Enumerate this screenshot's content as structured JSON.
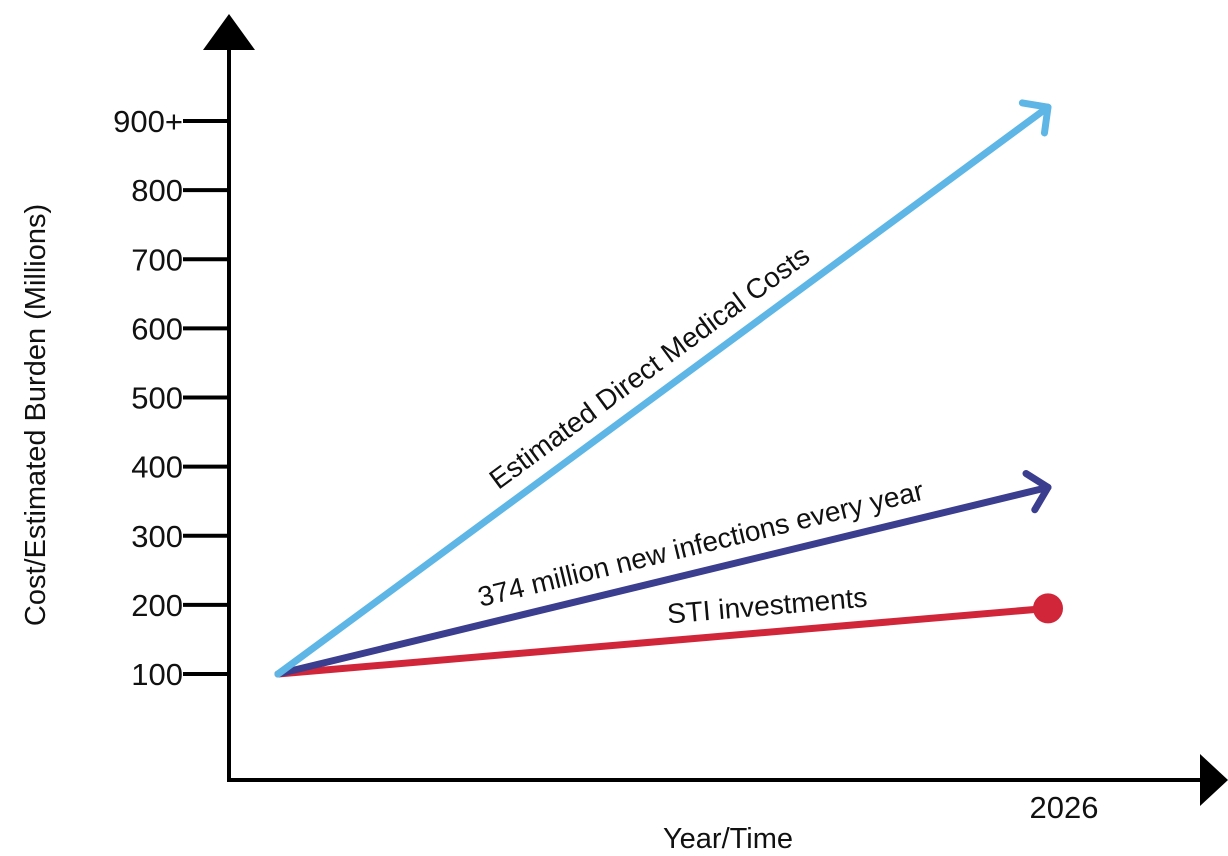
{
  "chart_data": {
    "type": "line",
    "xlabel": "Year/Time",
    "ylabel": "Cost/Estimated Burden (Millions)",
    "x_tick_labels": [
      "2026"
    ],
    "y_tick_labels": [
      "100",
      "200",
      "300",
      "400",
      "500",
      "600",
      "700",
      "800",
      "900+"
    ],
    "y_tick_values": [
      100,
      200,
      300,
      400,
      500,
      600,
      700,
      800,
      900
    ],
    "ylim": [
      0,
      1050
    ],
    "grid": false,
    "legend": "none",
    "series": [
      {
        "name": "Estimated Direct Medical Costs",
        "color": "#5DB6E5",
        "end_marker": "arrow",
        "x": [
          0,
          1
        ],
        "values": [
          100,
          920
        ]
      },
      {
        "name": "374 million new infections every year",
        "color": "#3B3E8F",
        "end_marker": "arrow",
        "x": [
          0,
          1
        ],
        "values": [
          100,
          370
        ]
      },
      {
        "name": "STI investments",
        "color": "#D1263A",
        "end_marker": "dot",
        "x": [
          0,
          1
        ],
        "values": [
          100,
          195
        ]
      }
    ]
  }
}
